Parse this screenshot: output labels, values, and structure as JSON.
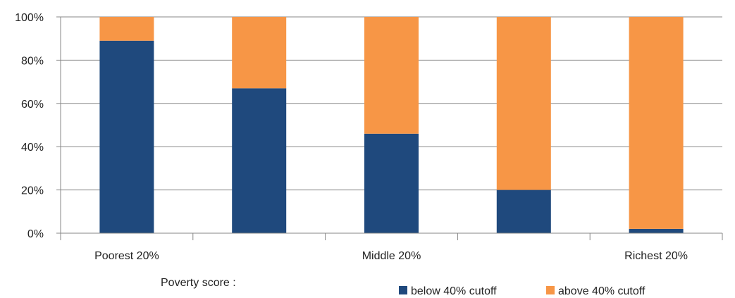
{
  "chart_data": {
    "type": "bar",
    "stacked": true,
    "percent_scale": true,
    "categories": [
      "Poorest 20%",
      "",
      "Middle 20%",
      "",
      "Richest 20%"
    ],
    "series": [
      {
        "name": "below 40% cutoff",
        "color": "#1F497D",
        "values": [
          89,
          67,
          46,
          20,
          2
        ]
      },
      {
        "name": "above 40% cutoff",
        "color": "#F79646",
        "values": [
          11,
          33,
          54,
          80,
          98
        ]
      }
    ],
    "ylim": [
      0,
      100
    ],
    "yticks": [
      "0%",
      "20%",
      "40%",
      "60%",
      "80%",
      "100%"
    ],
    "xlabel": "Poverty score :",
    "grid": true,
    "legend_position": "bottom-right"
  }
}
